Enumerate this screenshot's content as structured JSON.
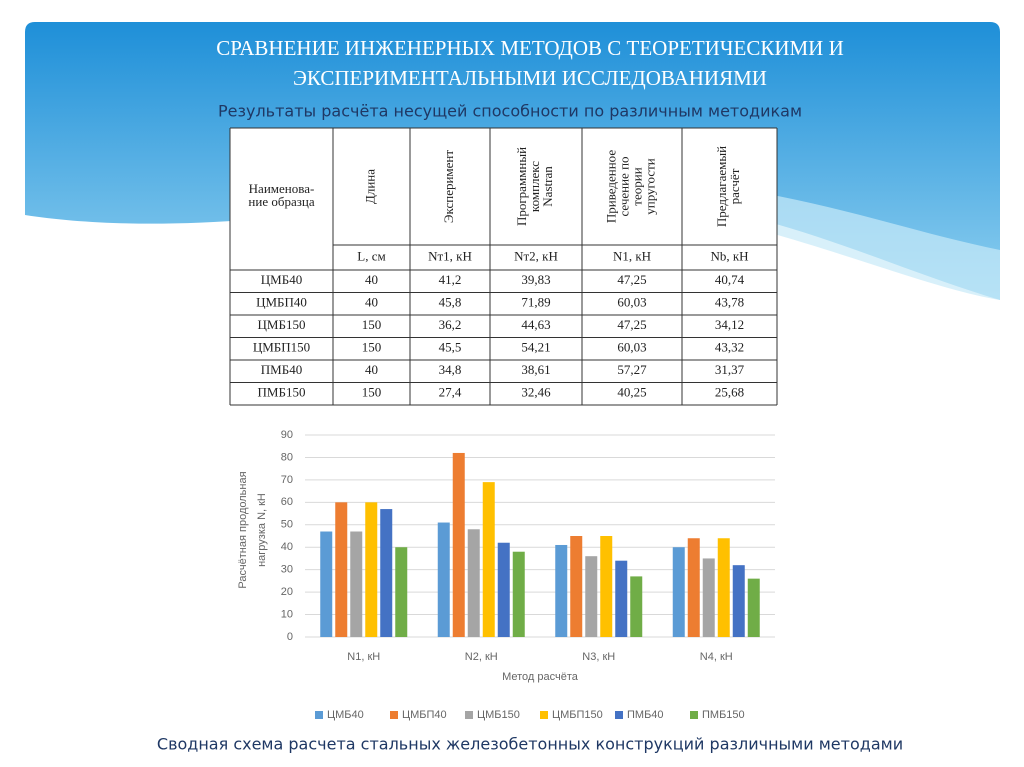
{
  "slide": {
    "title": [
      "СРАВНЕНИЕ ИНЖЕНЕРНЫХ МЕТОДОВ С ТЕОРЕТИЧЕСКИМИ И",
      "ЭКСПЕРИМЕНТАЛЬНЫМИ ИССЛЕДОВАНИЯМИ"
    ],
    "subtitle": "Результаты расчёта несущей способности по различным методикам",
    "caption": "Сводная схема расчета стальных железобетонных конструкций различными методами"
  },
  "table": {
    "header": [
      [
        "Наименова-",
        "ние образца"
      ],
      [
        "Длина"
      ],
      [
        "Эксперимент"
      ],
      [
        "Программный",
        "комплекс",
        "Nastran"
      ],
      [
        "Приведенное",
        "сечение по",
        "теории",
        "упругости"
      ],
      [
        "Предлагаемый",
        "расчёт"
      ]
    ],
    "units": [
      "L, см",
      "Nт1, кН",
      "Nт2, кН",
      "N1, кН",
      "Nb, кН"
    ],
    "rows": [
      [
        "ЦМБ40",
        "40",
        "41,2",
        "39,83",
        "47,25",
        "40,74"
      ],
      [
        "ЦМБП40",
        "40",
        "45,8",
        "71,89",
        "60,03",
        "43,78"
      ],
      [
        "ЦМБ150",
        "150",
        "36,2",
        "44,63",
        "47,25",
        "34,12"
      ],
      [
        "ЦМБП150",
        "150",
        "45,5",
        "54,21",
        "60,03",
        "43,32"
      ],
      [
        "ПМБ40",
        "40",
        "34,8",
        "38,61",
        "57,27",
        "31,37"
      ],
      [
        "ПМБ150",
        "150",
        "27,4",
        "32,46",
        "40,25",
        "25,68"
      ]
    ]
  },
  "chart_data": {
    "type": "bar",
    "y_label": [
      "Расчётная продольная",
      "нагрузка N, кН"
    ],
    "x_label": "Метод расчёта",
    "categories": [
      "N1, кН",
      "N2, кН",
      "N3, кН",
      "N4, кН"
    ],
    "series": [
      {
        "name": "ЦМБ40",
        "color": "#5b9bd5",
        "values": [
          47,
          51,
          41,
          40
        ]
      },
      {
        "name": "ЦМБП40",
        "color": "#ed7d31",
        "values": [
          60,
          82,
          45,
          44
        ]
      },
      {
        "name": "ЦМБ150",
        "color": "#a5a5a5",
        "values": [
          47,
          48,
          36,
          35
        ]
      },
      {
        "name": "ЦМБП150",
        "color": "#ffc000",
        "values": [
          60,
          69,
          45,
          44
        ]
      },
      {
        "name": "ПМБ40",
        "color": "#4472c4",
        "values": [
          57,
          42,
          34,
          32
        ]
      },
      {
        "name": "ПМБ150",
        "color": "#70ad47",
        "values": [
          40,
          38,
          27,
          26
        ]
      }
    ],
    "ylim": [
      0,
      90
    ],
    "yticks": [
      0,
      10,
      20,
      30,
      40,
      50,
      60,
      70,
      80,
      90
    ],
    "grid": true,
    "legend": "bottom"
  }
}
